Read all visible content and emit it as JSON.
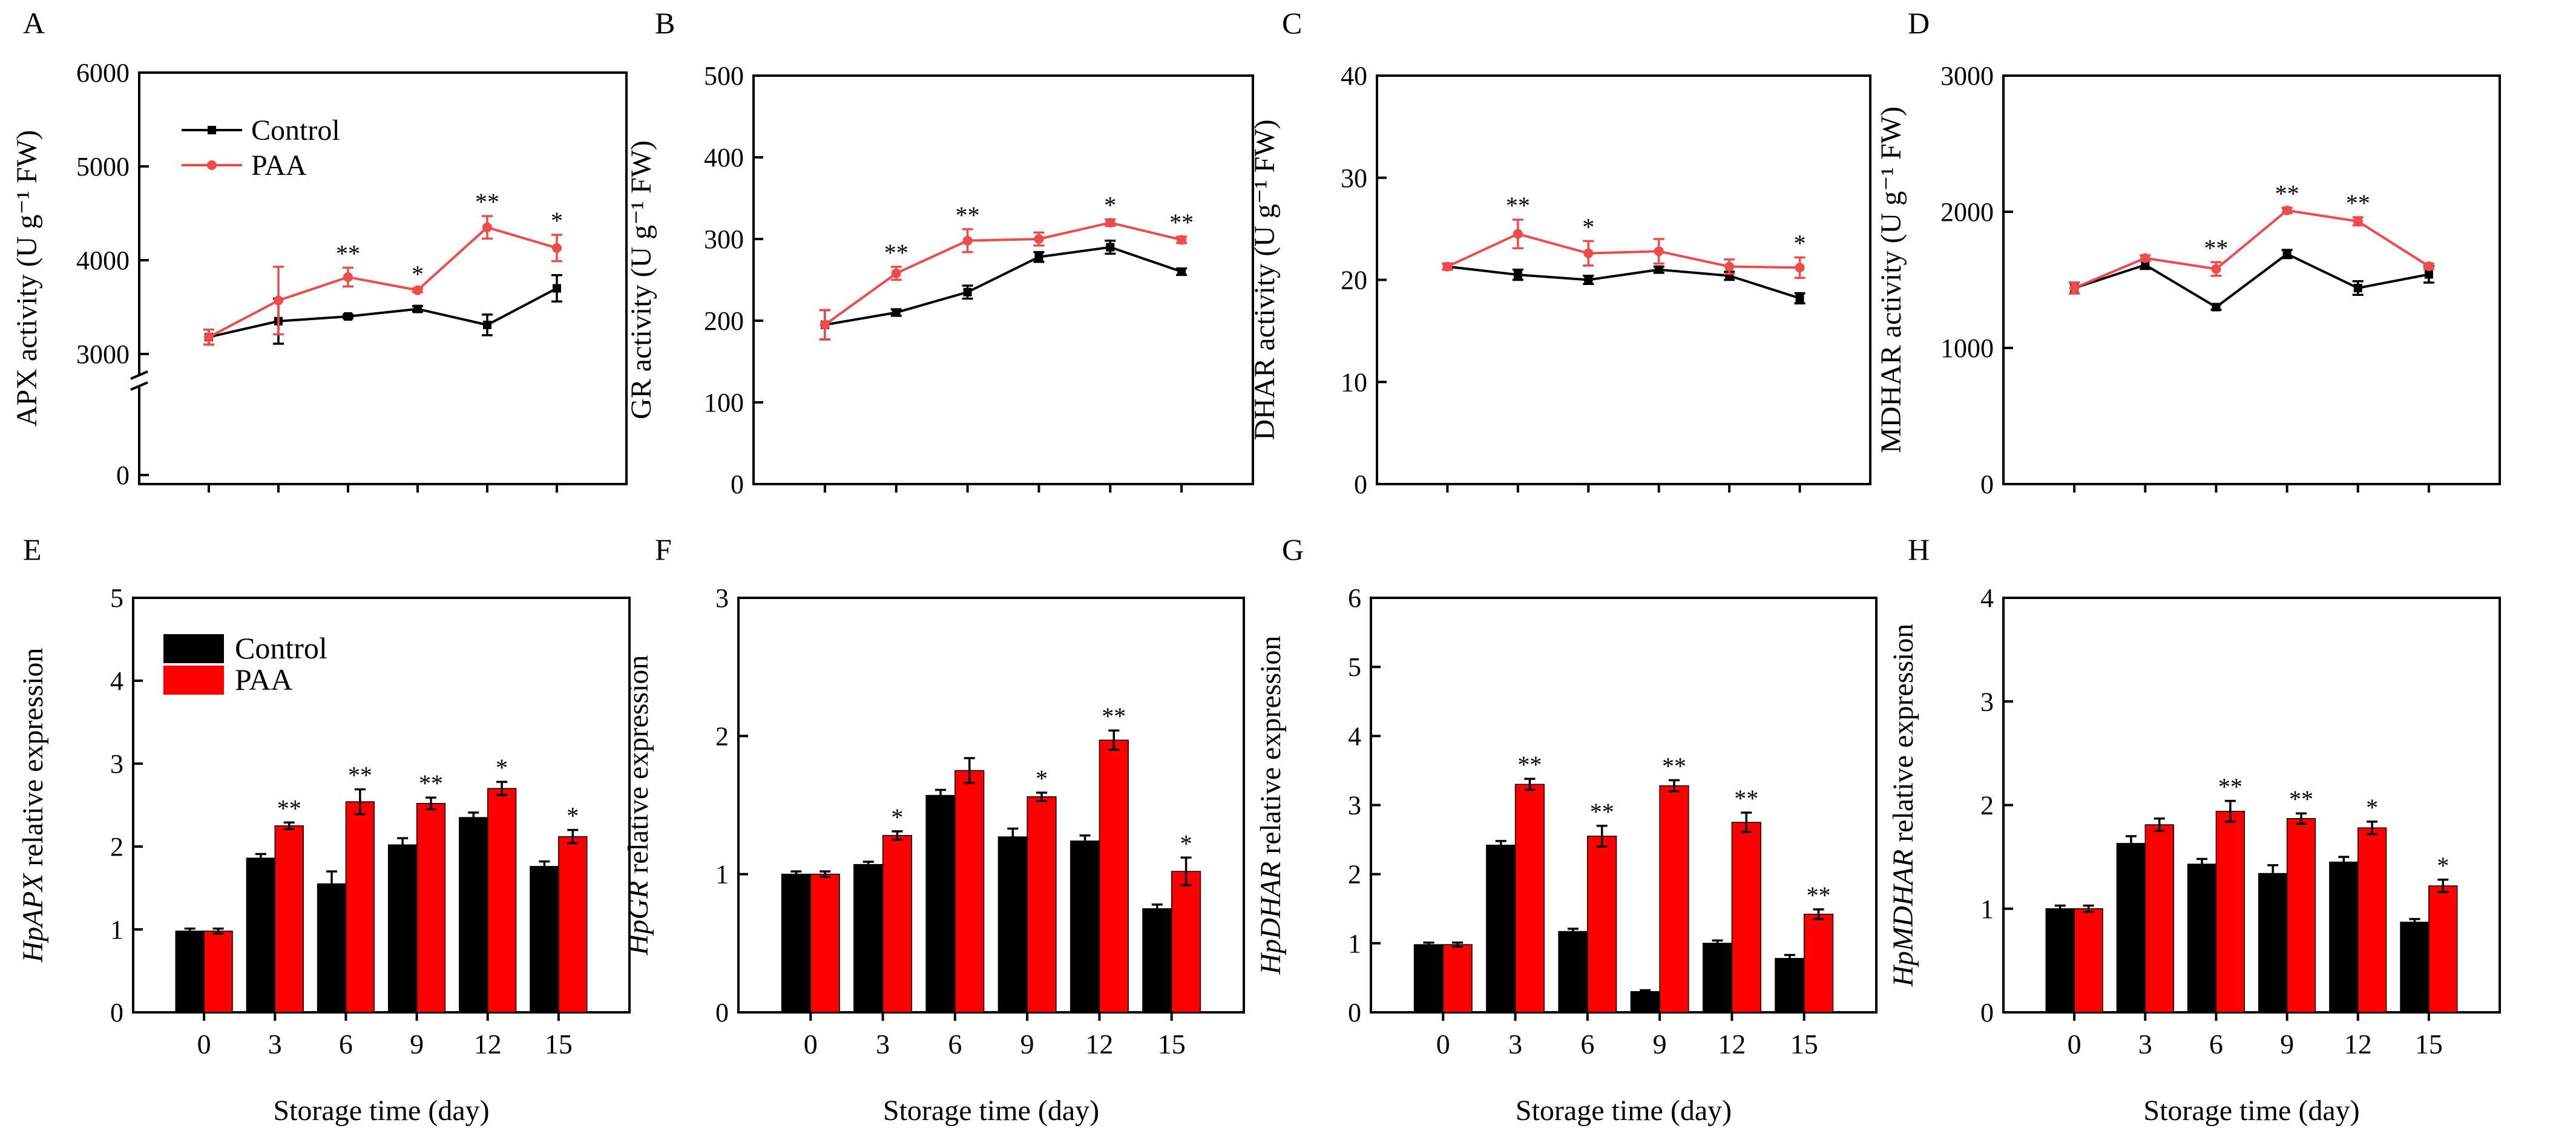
{
  "figure": {
    "xlabel_common": "Storage time (day)",
    "legend_control": "Control",
    "legend_paa": "PAA",
    "colors": {
      "control": "#000000",
      "paa": "#ff0000",
      "paa_line": "#ef4b4b"
    }
  },
  "chart_data": [
    {
      "panel": "A",
      "type": "line",
      "ylabel": "APX activity (U g⁻¹ FW)",
      "ylim": [
        0,
        6000
      ],
      "axis_break": [
        0,
        3000
      ],
      "y_ticks": [
        0,
        3000,
        4000,
        5000,
        6000
      ],
      "y_tick_labels": [
        "0",
        "3000",
        "4000",
        "5000",
        "6000"
      ],
      "x": [
        0,
        3,
        6,
        9,
        12,
        15
      ],
      "x_tick_labels": [],
      "xlabel": "",
      "legend": [
        "Control",
        "PAA"
      ],
      "series": [
        {
          "name": "Control",
          "values": [
            3180,
            3350,
            3400,
            3480,
            3310,
            3700
          ],
          "errors": [
            80,
            240,
            20,
            30,
            110,
            140
          ]
        },
        {
          "name": "PAA",
          "values": [
            3180,
            3570,
            3820,
            3680,
            4350,
            4130
          ],
          "errors": [
            80,
            360,
            100,
            20,
            120,
            140
          ]
        }
      ],
      "annotations": [
        {
          "series": "PAA",
          "index": 2,
          "text": "**"
        },
        {
          "series": "PAA",
          "index": 3,
          "text": "*"
        },
        {
          "series": "PAA",
          "index": 4,
          "text": "**"
        },
        {
          "series": "PAA",
          "index": 5,
          "text": "*"
        }
      ]
    },
    {
      "panel": "B",
      "type": "line",
      "ylabel": "GR activity (U g⁻¹ FW)",
      "ylim": [
        0,
        500
      ],
      "y_ticks": [
        0,
        100,
        200,
        300,
        400,
        500
      ],
      "y_tick_labels": [
        "0",
        "100",
        "200",
        "300",
        "400",
        "500"
      ],
      "x": [
        0,
        3,
        6,
        9,
        12,
        15
      ],
      "x_tick_labels": [],
      "xlabel": "",
      "series": [
        {
          "name": "Control",
          "values": [
            195,
            210,
            235,
            278,
            290,
            260
          ],
          "errors": [
            18,
            4,
            8,
            6,
            8,
            4
          ]
        },
        {
          "name": "PAA",
          "values": [
            195,
            258,
            298,
            300,
            320,
            299
          ],
          "errors": [
            18,
            8,
            14,
            8,
            4,
            4
          ]
        }
      ],
      "annotations": [
        {
          "series": "PAA",
          "index": 1,
          "text": "**"
        },
        {
          "series": "PAA",
          "index": 2,
          "text": "**"
        },
        {
          "series": "PAA",
          "index": 4,
          "text": "*"
        },
        {
          "series": "PAA",
          "index": 5,
          "text": "**"
        }
      ]
    },
    {
      "panel": "C",
      "type": "line",
      "ylabel": "DHAR  activity (U g⁻¹ FW)",
      "ylim": [
        0,
        40
      ],
      "y_ticks": [
        0,
        10,
        20,
        30,
        40
      ],
      "y_tick_labels": [
        "0",
        "10",
        "20",
        "30",
        "40"
      ],
      "x": [
        0,
        3,
        6,
        9,
        12,
        15
      ],
      "x_tick_labels": [],
      "xlabel": "",
      "series": [
        {
          "name": "Control",
          "values": [
            21.3,
            20.5,
            20.0,
            21.0,
            20.4,
            18.2
          ],
          "errors": [
            0.3,
            0.5,
            0.4,
            0.3,
            0.4,
            0.5
          ]
        },
        {
          "name": "PAA",
          "values": [
            21.3,
            24.5,
            22.6,
            22.8,
            21.3,
            21.2
          ],
          "errors": [
            0.3,
            1.4,
            1.2,
            1.2,
            0.7,
            1.0
          ]
        }
      ],
      "annotations": [
        {
          "series": "PAA",
          "index": 1,
          "text": "**"
        },
        {
          "series": "PAA",
          "index": 2,
          "text": "*"
        },
        {
          "series": "PAA",
          "index": 5,
          "text": "*"
        }
      ]
    },
    {
      "panel": "D",
      "type": "line",
      "ylabel": "MDHAR  activity (U g⁻¹ FW)",
      "ylim": [
        0,
        3000
      ],
      "y_ticks": [
        0,
        1000,
        2000,
        3000
      ],
      "y_tick_labels": [
        "0",
        "1000",
        "2000",
        "3000"
      ],
      "x": [
        0,
        3,
        6,
        9,
        12,
        15
      ],
      "x_tick_labels": [],
      "xlabel": "",
      "series": [
        {
          "name": "Control",
          "values": [
            1440,
            1610,
            1300,
            1690,
            1440,
            1540
          ],
          "errors": [
            40,
            30,
            20,
            30,
            50,
            60
          ]
        },
        {
          "name": "PAA",
          "values": [
            1440,
            1660,
            1580,
            2010,
            1930,
            1600
          ],
          "errors": [
            40,
            20,
            50,
            20,
            30,
            20
          ]
        }
      ],
      "annotations": [
        {
          "series": "PAA",
          "index": 2,
          "text": "**"
        },
        {
          "series": "PAA",
          "index": 3,
          "text": "**"
        },
        {
          "series": "PAA",
          "index": 4,
          "text": "**"
        }
      ]
    },
    {
      "panel": "E",
      "type": "bar",
      "ylabel_gene": "HpAPX",
      "ylabel_rest": " relative expression",
      "ylim": [
        0,
        5
      ],
      "y_ticks": [
        0,
        1,
        2,
        3,
        4,
        5
      ],
      "y_tick_labels": [
        "0",
        "1",
        "2",
        "3",
        "4",
        "5"
      ],
      "x_tick_labels": [
        "0",
        "3",
        "6",
        "9",
        "12",
        "15"
      ],
      "xlabel": "Storage time (day)",
      "legend": [
        "Control",
        "PAA"
      ],
      "series": [
        {
          "name": "Control",
          "values": [
            0.98,
            1.86,
            1.55,
            2.02,
            2.35,
            1.76
          ],
          "errors": [
            0.03,
            0.05,
            0.15,
            0.08,
            0.06,
            0.06
          ]
        },
        {
          "name": "PAA",
          "values": [
            0.98,
            2.25,
            2.54,
            2.52,
            2.7,
            2.12
          ],
          "errors": [
            0.03,
            0.04,
            0.15,
            0.07,
            0.08,
            0.08
          ]
        }
      ],
      "annotations": [
        {
          "series": "PAA",
          "index": 1,
          "text": "**"
        },
        {
          "series": "PAA",
          "index": 2,
          "text": "**"
        },
        {
          "series": "PAA",
          "index": 3,
          "text": "**"
        },
        {
          "series": "PAA",
          "index": 4,
          "text": "*"
        },
        {
          "series": "PAA",
          "index": 5,
          "text": "*"
        }
      ]
    },
    {
      "panel": "F",
      "type": "bar",
      "ylabel_gene": "HpGR",
      "ylabel_rest": " relative expression",
      "ylim": [
        0,
        3
      ],
      "y_ticks": [
        0,
        1,
        2,
        3
      ],
      "y_tick_labels": [
        "0",
        "1",
        "2",
        "3"
      ],
      "x_tick_labels": [
        "0",
        "3",
        "6",
        "9",
        "12",
        "15"
      ],
      "xlabel": "Storage time (day)",
      "series": [
        {
          "name": "Control",
          "values": [
            1.0,
            1.07,
            1.57,
            1.27,
            1.24,
            0.75
          ],
          "errors": [
            0.02,
            0.02,
            0.04,
            0.06,
            0.04,
            0.03
          ]
        },
        {
          "name": "PAA",
          "values": [
            1.0,
            1.28,
            1.75,
            1.56,
            1.97,
            1.02
          ],
          "errors": [
            0.02,
            0.03,
            0.09,
            0.03,
            0.07,
            0.1
          ]
        }
      ],
      "annotations": [
        {
          "series": "PAA",
          "index": 1,
          "text": "*"
        },
        {
          "series": "PAA",
          "index": 3,
          "text": "*"
        },
        {
          "series": "PAA",
          "index": 4,
          "text": "**"
        },
        {
          "series": "PAA",
          "index": 5,
          "text": "*"
        }
      ]
    },
    {
      "panel": "G",
      "type": "bar",
      "ylabel_gene": "HpDHAR",
      "ylabel_rest": " relative expression",
      "ylim": [
        0,
        6
      ],
      "y_ticks": [
        0,
        1,
        2,
        3,
        4,
        5,
        6
      ],
      "y_tick_labels": [
        "0",
        "1",
        "2",
        "3",
        "4",
        "5",
        "6"
      ],
      "x_tick_labels": [
        "0",
        "3",
        "6",
        "9",
        "12",
        "15"
      ],
      "xlabel": "Storage time (day)",
      "series": [
        {
          "name": "Control",
          "values": [
            0.98,
            2.42,
            1.17,
            0.3,
            1.0,
            0.78
          ],
          "errors": [
            0.03,
            0.06,
            0.04,
            0.02,
            0.04,
            0.05
          ]
        },
        {
          "name": "PAA",
          "values": [
            0.98,
            3.3,
            2.55,
            3.28,
            2.75,
            1.42
          ],
          "errors": [
            0.03,
            0.08,
            0.15,
            0.08,
            0.14,
            0.07
          ]
        }
      ],
      "annotations": [
        {
          "series": "PAA",
          "index": 1,
          "text": "**"
        },
        {
          "series": "PAA",
          "index": 2,
          "text": "**"
        },
        {
          "series": "PAA",
          "index": 3,
          "text": "**"
        },
        {
          "series": "PAA",
          "index": 4,
          "text": "**"
        },
        {
          "series": "PAA",
          "index": 5,
          "text": "**"
        }
      ]
    },
    {
      "panel": "H",
      "type": "bar",
      "ylabel_gene": "HpMDHAR",
      "ylabel_rest": " relative expression",
      "ylim": [
        0,
        4
      ],
      "y_ticks": [
        0,
        1,
        2,
        3,
        4
      ],
      "y_tick_labels": [
        "0",
        "1",
        "2",
        "3",
        "4"
      ],
      "x_tick_labels": [
        "0",
        "3",
        "6",
        "9",
        "12",
        "15"
      ],
      "xlabel": "Storage time (day)",
      "series": [
        {
          "name": "Control",
          "values": [
            1.0,
            1.63,
            1.43,
            1.34,
            1.45,
            0.87
          ],
          "errors": [
            0.03,
            0.07,
            0.05,
            0.08,
            0.05,
            0.03
          ]
        },
        {
          "name": "PAA",
          "values": [
            1.0,
            1.81,
            1.94,
            1.87,
            1.78,
            1.22
          ],
          "errors": [
            0.03,
            0.06,
            0.1,
            0.05,
            0.06,
            0.06
          ]
        }
      ],
      "annotations": [
        {
          "series": "PAA",
          "index": 2,
          "text": "**"
        },
        {
          "series": "PAA",
          "index": 3,
          "text": "**"
        },
        {
          "series": "PAA",
          "index": 4,
          "text": "*"
        },
        {
          "series": "PAA",
          "index": 5,
          "text": "*"
        }
      ]
    }
  ]
}
